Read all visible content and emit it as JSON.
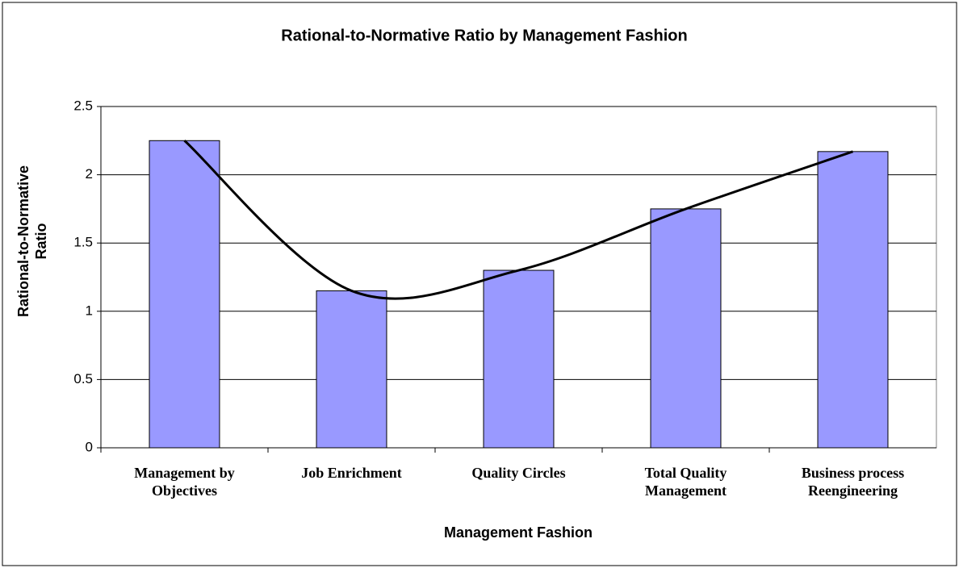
{
  "chart_data": {
    "type": "bar",
    "title": "Rational-to-Normative Ratio by Management Fashion",
    "x_label": "Management Fashion",
    "y_label": "Rational-to-Normative Ratio",
    "categories": [
      "Management by Objectives",
      "Job Enrichment",
      "Quality Circles",
      "Total Quality Management",
      "Business process Reengineering"
    ],
    "values": [
      2.25,
      1.15,
      1.3,
      1.75,
      2.17
    ],
    "color": "#9999ff",
    "ylim": [
      0,
      2.5
    ],
    "yticks": [
      0,
      0.5,
      1,
      1.5,
      2,
      2.5
    ],
    "grid": true,
    "trendline": true
  }
}
